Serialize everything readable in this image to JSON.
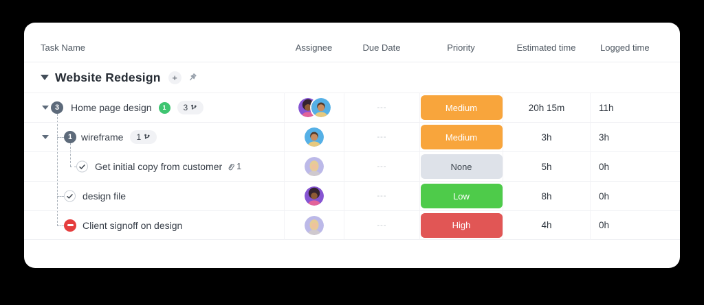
{
  "theme": {
    "priority_colors": {
      "Medium": "#f8a53c",
      "None": "#dee2e9",
      "Low": "#4ecb4a",
      "High": "#e15655"
    },
    "priority_text_colors": {
      "Medium": "#ffffff",
      "None": "#3f4750",
      "Low": "#ffffff",
      "High": "#ffffff"
    },
    "badge_color": "#5d6a7a",
    "blocked_color": "#e53e3e",
    "comment_bubble_color": "#3fc571",
    "avatars": {
      "purple-woman": {
        "type": "afro",
        "bg": "#8655d2",
        "hair": "#34232f",
        "skin": "#8f5b35",
        "shirt": "#e2639a"
      },
      "blue-man": {
        "type": "short",
        "bg": "#55b0e6",
        "hair": "#53392a",
        "skin": "#c98d60",
        "shirt": "#e7c97e"
      },
      "lavender-woman": {
        "type": "long",
        "bg": "#bcb9e8",
        "hair": "#e6cd96",
        "skin": "#eec39d",
        "shirt": "#cfc9ce"
      }
    }
  },
  "header": {
    "columns": [
      "Task Name",
      "Assignee",
      "Due Date",
      "Priority",
      "Estimated time",
      "Logged time"
    ]
  },
  "group": {
    "title": "Website Redesign",
    "add_label": "+"
  },
  "rows": [
    {
      "name": "Home page design",
      "badge": "3",
      "comments": "1",
      "subtasks": "3",
      "due": "---",
      "priority": "Medium",
      "estimated": "20h 15m",
      "logged": "11h",
      "assignees": [
        "purple-woman",
        "blue-man"
      ],
      "status": "expandable"
    },
    {
      "name": "wireframe",
      "badge": "1",
      "subtasks": "1",
      "due": "---",
      "priority": "Medium",
      "estimated": "3h",
      "logged": "3h",
      "assignees": [
        "blue-man"
      ],
      "status": "expandable"
    },
    {
      "name": "Get initial copy from customer",
      "attachments": "1",
      "due": "---",
      "priority": "None",
      "estimated": "5h",
      "logged": "0h",
      "assignees": [
        "lavender-woman"
      ],
      "status": "done"
    },
    {
      "name": "design file",
      "due": "---",
      "priority": "Low",
      "estimated": "8h",
      "logged": "0h",
      "assignees": [
        "purple-woman"
      ],
      "status": "done"
    },
    {
      "name": "Client signoff on design",
      "due": "---",
      "priority": "High",
      "estimated": "4h",
      "logged": "0h",
      "assignees": [
        "lavender-woman"
      ],
      "status": "blocked"
    }
  ]
}
